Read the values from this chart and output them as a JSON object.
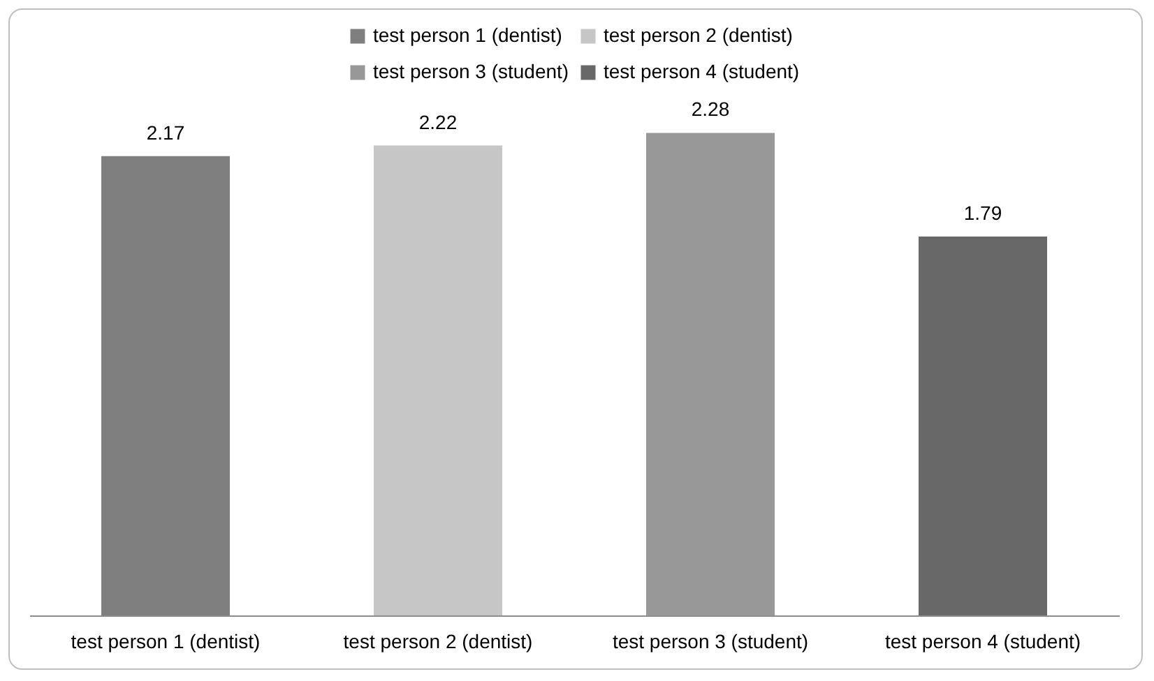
{
  "chart_data": {
    "type": "bar",
    "categories": [
      "test person 1 (dentist)",
      "test person 2 (dentist)",
      "test person 3 (student)",
      "test person 4 (student)"
    ],
    "series": [
      {
        "name": "test person 1 (dentist)",
        "color": "#7f7f7f",
        "values": [
          2.17,
          null,
          null,
          null
        ]
      },
      {
        "name": "test person 2 (dentist)",
        "color": "#c6c6c6",
        "values": [
          null,
          2.22,
          null,
          null
        ]
      },
      {
        "name": "test person 3 (student)",
        "color": "#989898",
        "values": [
          null,
          null,
          2.28,
          null
        ]
      },
      {
        "name": "test person 4 (student)",
        "color": "#686868",
        "values": [
          null,
          null,
          null,
          1.79
        ]
      }
    ],
    "data_labels": true,
    "legend": "top"
  }
}
